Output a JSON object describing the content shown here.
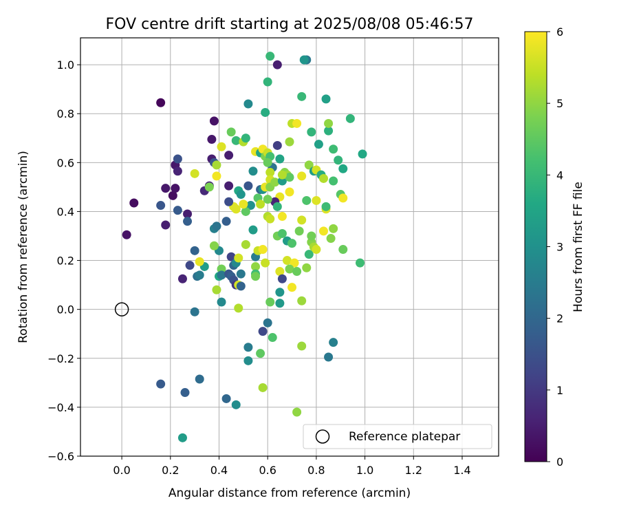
{
  "chart_data": {
    "type": "scatter",
    "title": "FOV centre drift starting at 2025/08/08 05:46:57",
    "xlabel": "Angular distance from reference (arcmin)",
    "ylabel": "Rotation from reference (arcmin)",
    "xlim": [
      -0.17,
      1.55
    ],
    "ylim": [
      -0.6,
      1.11
    ],
    "xticks": [
      "0.0",
      "0.2",
      "0.4",
      "0.6",
      "0.8",
      "1.0",
      "1.2",
      "1.4"
    ],
    "yticks": [
      "1.0",
      "0.8",
      "0.6",
      "0.4",
      "0.2",
      "0.0",
      "−0.2",
      "−0.4",
      "−0.6"
    ],
    "grid": true,
    "colormap": "viridis",
    "colorbar": {
      "label": "Hours from first FF file",
      "range": [
        0,
        6
      ],
      "ticks": [
        "0",
        "1",
        "2",
        "3",
        "4",
        "5",
        "6"
      ]
    },
    "legend": {
      "position": "lower right",
      "entries": [
        {
          "label": "Reference platepar",
          "marker": "open-circle",
          "x": 0.0,
          "y": 0.0
        }
      ]
    },
    "points": [
      {
        "x": 0.16,
        "y": 0.845,
        "c": 0.1
      },
      {
        "x": 0.05,
        "y": 0.435,
        "c": 0.2
      },
      {
        "x": 0.02,
        "y": 0.305,
        "c": 0.3
      },
      {
        "x": 0.18,
        "y": 0.495,
        "c": 0.4
      },
      {
        "x": 0.18,
        "y": 0.345,
        "c": 0.5
      },
      {
        "x": 0.21,
        "y": 0.465,
        "c": 0.2
      },
      {
        "x": 0.22,
        "y": 0.495,
        "c": 0.3
      },
      {
        "x": 0.22,
        "y": 0.59,
        "c": 0.4
      },
      {
        "x": 0.23,
        "y": 0.565,
        "c": 0.6
      },
      {
        "x": 0.23,
        "y": 0.615,
        "c": 1.5
      },
      {
        "x": 0.16,
        "y": 0.425,
        "c": 1.6
      },
      {
        "x": 0.23,
        "y": 0.405,
        "c": 1.7
      },
      {
        "x": 0.27,
        "y": 0.39,
        "c": 0.5
      },
      {
        "x": 0.27,
        "y": 0.36,
        "c": 1.8
      },
      {
        "x": 0.25,
        "y": 0.125,
        "c": 0.6
      },
      {
        "x": 0.28,
        "y": 0.18,
        "c": 1.3
      },
      {
        "x": 0.3,
        "y": 0.24,
        "c": 1.9
      },
      {
        "x": 0.31,
        "y": 0.135,
        "c": 2.2
      },
      {
        "x": 0.32,
        "y": 0.14,
        "c": 2.5
      },
      {
        "x": 0.34,
        "y": 0.175,
        "c": 3.3
      },
      {
        "x": 0.32,
        "y": 0.195,
        "c": 5.8
      },
      {
        "x": 0.3,
        "y": 0.555,
        "c": 5.6
      },
      {
        "x": 0.34,
        "y": 0.485,
        "c": 0.7
      },
      {
        "x": 0.36,
        "y": 0.505,
        "c": 0.6
      },
      {
        "x": 0.37,
        "y": 0.695,
        "c": 0.4
      },
      {
        "x": 0.38,
        "y": 0.77,
        "c": 0.3
      },
      {
        "x": 0.37,
        "y": 0.615,
        "c": 0.5
      },
      {
        "x": 0.38,
        "y": 0.6,
        "c": 1.6
      },
      {
        "x": 0.39,
        "y": 0.59,
        "c": 5.2
      },
      {
        "x": 0.36,
        "y": 0.5,
        "c": 4.8
      },
      {
        "x": 0.39,
        "y": 0.545,
        "c": 5.9
      },
      {
        "x": 0.41,
        "y": 0.665,
        "c": 5.7
      },
      {
        "x": 0.44,
        "y": 0.63,
        "c": 0.5
      },
      {
        "x": 0.44,
        "y": 0.505,
        "c": 0.5
      },
      {
        "x": 0.45,
        "y": 0.725,
        "c": 4.6
      },
      {
        "x": 0.47,
        "y": 0.69,
        "c": 4.0
      },
      {
        "x": 0.5,
        "y": 0.685,
        "c": 5.3
      },
      {
        "x": 0.51,
        "y": 0.7,
        "c": 3.9
      },
      {
        "x": 0.46,
        "y": 0.42,
        "c": 5.7
      },
      {
        "x": 0.48,
        "y": 0.485,
        "c": 3.6
      },
      {
        "x": 0.49,
        "y": 0.47,
        "c": 3.1
      },
      {
        "x": 0.52,
        "y": 0.505,
        "c": 1.6
      },
      {
        "x": 0.53,
        "y": 0.425,
        "c": 3.0
      },
      {
        "x": 0.51,
        "y": 0.4,
        "c": 4.5
      },
      {
        "x": 0.47,
        "y": 0.41,
        "c": 5.7
      },
      {
        "x": 0.5,
        "y": 0.43,
        "c": 5.8
      },
      {
        "x": 0.44,
        "y": 0.44,
        "c": 1.4
      },
      {
        "x": 0.38,
        "y": 0.33,
        "c": 2.6
      },
      {
        "x": 0.39,
        "y": 0.34,
        "c": 2.3
      },
      {
        "x": 0.4,
        "y": 0.24,
        "c": 2.8
      },
      {
        "x": 0.38,
        "y": 0.26,
        "c": 4.9
      },
      {
        "x": 0.43,
        "y": 0.36,
        "c": 1.8
      },
      {
        "x": 0.45,
        "y": 0.215,
        "c": 1.2
      },
      {
        "x": 0.46,
        "y": 0.18,
        "c": 2.0
      },
      {
        "x": 0.47,
        "y": 0.19,
        "c": 2.8
      },
      {
        "x": 0.48,
        "y": 0.21,
        "c": 5.6
      },
      {
        "x": 0.41,
        "y": 0.165,
        "c": 4.7
      },
      {
        "x": 0.4,
        "y": 0.135,
        "c": 3.6
      },
      {
        "x": 0.41,
        "y": 0.14,
        "c": 2.4
      },
      {
        "x": 0.44,
        "y": 0.145,
        "c": 1.6
      },
      {
        "x": 0.45,
        "y": 0.135,
        "c": 1.8
      },
      {
        "x": 0.46,
        "y": 0.12,
        "c": 1.5
      },
      {
        "x": 0.47,
        "y": 0.1,
        "c": 1.0
      },
      {
        "x": 0.48,
        "y": 0.1,
        "c": 5.6
      },
      {
        "x": 0.49,
        "y": 0.095,
        "c": 1.9
      },
      {
        "x": 0.49,
        "y": 0.145,
        "c": 2.4
      },
      {
        "x": 0.39,
        "y": 0.08,
        "c": 5.2
      },
      {
        "x": 0.41,
        "y": 0.03,
        "c": 2.8
      },
      {
        "x": 0.48,
        "y": 0.005,
        "c": 5.3
      },
      {
        "x": 0.3,
        "y": -0.01,
        "c": 2.3
      },
      {
        "x": 0.51,
        "y": 0.265,
        "c": 5.2
      },
      {
        "x": 0.54,
        "y": 0.325,
        "c": 3.3
      },
      {
        "x": 0.55,
        "y": 0.215,
        "c": 2.5
      },
      {
        "x": 0.55,
        "y": 0.175,
        "c": 5.0
      },
      {
        "x": 0.55,
        "y": 0.145,
        "c": 4.1
      },
      {
        "x": 0.55,
        "y": 0.135,
        "c": 4.7
      },
      {
        "x": 0.56,
        "y": 0.24,
        "c": 5.5
      },
      {
        "x": 0.58,
        "y": 0.245,
        "c": 5.9
      },
      {
        "x": 0.59,
        "y": 0.19,
        "c": 5.5
      },
      {
        "x": 0.56,
        "y": 0.455,
        "c": 4.4
      },
      {
        "x": 0.57,
        "y": 0.43,
        "c": 5.4
      },
      {
        "x": 0.57,
        "y": 0.49,
        "c": 1.9
      },
      {
        "x": 0.58,
        "y": 0.49,
        "c": 3.0
      },
      {
        "x": 0.54,
        "y": 0.565,
        "c": 2.9
      },
      {
        "x": 0.55,
        "y": 0.645,
        "c": 5.8
      },
      {
        "x": 0.57,
        "y": 0.64,
        "c": 3.5
      },
      {
        "x": 0.58,
        "y": 0.655,
        "c": 5.9
      },
      {
        "x": 0.59,
        "y": 0.625,
        "c": 4.8
      },
      {
        "x": 0.6,
        "y": 0.64,
        "c": 5.5
      },
      {
        "x": 0.61,
        "y": 0.625,
        "c": 4.2
      },
      {
        "x": 0.62,
        "y": 0.58,
        "c": 2.3
      },
      {
        "x": 0.6,
        "y": 0.6,
        "c": 4.6
      },
      {
        "x": 0.61,
        "y": 0.56,
        "c": 5.4
      },
      {
        "x": 0.59,
        "y": 0.5,
        "c": 5.8
      },
      {
        "x": 0.61,
        "y": 0.53,
        "c": 5.6
      },
      {
        "x": 0.61,
        "y": 0.5,
        "c": 4.9
      },
      {
        "x": 0.63,
        "y": 0.52,
        "c": 5.0
      },
      {
        "x": 0.64,
        "y": 0.67,
        "c": 1.1
      },
      {
        "x": 0.65,
        "y": 0.615,
        "c": 3.5
      },
      {
        "x": 0.66,
        "y": 0.525,
        "c": 3.3
      },
      {
        "x": 0.65,
        "y": 0.46,
        "c": 5.8
      },
      {
        "x": 0.63,
        "y": 0.44,
        "c": 0.6
      },
      {
        "x": 0.64,
        "y": 0.42,
        "c": 3.9
      },
      {
        "x": 0.6,
        "y": 0.45,
        "c": 4.7
      },
      {
        "x": 0.6,
        "y": 0.38,
        "c": 5.3
      },
      {
        "x": 0.61,
        "y": 0.37,
        "c": 5.5
      },
      {
        "x": 0.66,
        "y": 0.38,
        "c": 5.9
      },
      {
        "x": 0.64,
        "y": 0.3,
        "c": 4.7
      },
      {
        "x": 0.66,
        "y": 0.31,
        "c": 4.3
      },
      {
        "x": 0.68,
        "y": 0.28,
        "c": 3.3
      },
      {
        "x": 0.7,
        "y": 0.27,
        "c": 4.3
      },
      {
        "x": 0.68,
        "y": 0.2,
        "c": 5.6
      },
      {
        "x": 0.71,
        "y": 0.19,
        "c": 5.9
      },
      {
        "x": 0.69,
        "y": 0.165,
        "c": 4.8
      },
      {
        "x": 0.72,
        "y": 0.155,
        "c": 4.6
      },
      {
        "x": 0.65,
        "y": 0.155,
        "c": 5.7
      },
      {
        "x": 0.66,
        "y": 0.125,
        "c": 1.3
      },
      {
        "x": 0.65,
        "y": 0.07,
        "c": 3.1
      },
      {
        "x": 0.61,
        "y": 0.03,
        "c": 4.6
      },
      {
        "x": 0.65,
        "y": 0.025,
        "c": 3.2
      },
      {
        "x": 0.7,
        "y": 0.09,
        "c": 5.9
      },
      {
        "x": 0.74,
        "y": 0.035,
        "c": 5.1
      },
      {
        "x": 0.74,
        "y": 0.365,
        "c": 5.6
      },
      {
        "x": 0.73,
        "y": 0.32,
        "c": 4.7
      },
      {
        "x": 0.76,
        "y": 0.445,
        "c": 4.3
      },
      {
        "x": 0.76,
        "y": 0.17,
        "c": 5.0
      },
      {
        "x": 0.77,
        "y": 0.225,
        "c": 4.0
      },
      {
        "x": 0.78,
        "y": 0.275,
        "c": 4.9
      },
      {
        "x": 0.78,
        "y": 0.3,
        "c": 4.7
      },
      {
        "x": 0.79,
        "y": 0.255,
        "c": 5.2
      },
      {
        "x": 0.8,
        "y": 0.245,
        "c": 5.6
      },
      {
        "x": 0.84,
        "y": 0.41,
        "c": 5.7
      },
      {
        "x": 0.84,
        "y": 0.42,
        "c": 4.1
      },
      {
        "x": 0.86,
        "y": 0.29,
        "c": 4.9
      },
      {
        "x": 0.9,
        "y": 0.47,
        "c": 4.4
      },
      {
        "x": 0.91,
        "y": 0.455,
        "c": 5.9
      },
      {
        "x": 0.91,
        "y": 0.245,
        "c": 4.6
      },
      {
        "x": 0.98,
        "y": 0.19,
        "c": 4.1
      },
      {
        "x": 0.67,
        "y": 0.56,
        "c": 4.9
      },
      {
        "x": 0.68,
        "y": 0.55,
        "c": 5.1
      },
      {
        "x": 0.69,
        "y": 0.54,
        "c": 4.5
      },
      {
        "x": 0.66,
        "y": 0.55,
        "c": 5.3
      },
      {
        "x": 0.7,
        "y": 0.76,
        "c": 5.4
      },
      {
        "x": 0.72,
        "y": 0.76,
        "c": 5.9
      },
      {
        "x": 0.69,
        "y": 0.685,
        "c": 5.1
      },
      {
        "x": 0.74,
        "y": 0.87,
        "c": 4.0
      },
      {
        "x": 0.77,
        "y": 0.59,
        "c": 5.0
      },
      {
        "x": 0.78,
        "y": 0.725,
        "c": 3.9
      },
      {
        "x": 0.79,
        "y": 0.565,
        "c": 3.3
      },
      {
        "x": 0.8,
        "y": 0.57,
        "c": 5.6
      },
      {
        "x": 0.81,
        "y": 0.675,
        "c": 3.4
      },
      {
        "x": 0.82,
        "y": 0.55,
        "c": 3.7
      },
      {
        "x": 0.83,
        "y": 0.535,
        "c": 5.3
      },
      {
        "x": 0.84,
        "y": 0.86,
        "c": 3.4
      },
      {
        "x": 0.85,
        "y": 0.73,
        "c": 3.8
      },
      {
        "x": 0.85,
        "y": 0.76,
        "c": 5.0
      },
      {
        "x": 0.87,
        "y": 0.655,
        "c": 4.1
      },
      {
        "x": 0.87,
        "y": 0.525,
        "c": 4.2
      },
      {
        "x": 0.89,
        "y": 0.61,
        "c": 3.9
      },
      {
        "x": 0.91,
        "y": 0.575,
        "c": 3.6
      },
      {
        "x": 0.94,
        "y": 0.78,
        "c": 3.9
      },
      {
        "x": 0.99,
        "y": 0.635,
        "c": 3.6
      },
      {
        "x": 0.61,
        "y": 1.035,
        "c": 4.0
      },
      {
        "x": 0.64,
        "y": 1.0,
        "c": 0.5
      },
      {
        "x": 0.76,
        "y": 1.02,
        "c": 2.4
      },
      {
        "x": 0.75,
        "y": 1.02,
        "c": 3.1
      },
      {
        "x": 0.6,
        "y": 0.93,
        "c": 3.9
      },
      {
        "x": 0.59,
        "y": 0.805,
        "c": 3.7
      },
      {
        "x": 0.52,
        "y": 0.84,
        "c": 2.8
      },
      {
        "x": 0.6,
        "y": -0.055,
        "c": 2.3
      },
      {
        "x": 0.62,
        "y": -0.115,
        "c": 4.3
      },
      {
        "x": 0.58,
        "y": -0.09,
        "c": 1.3
      },
      {
        "x": 0.52,
        "y": -0.155,
        "c": 2.5
      },
      {
        "x": 0.52,
        "y": -0.21,
        "c": 2.9
      },
      {
        "x": 0.57,
        "y": -0.18,
        "c": 4.5
      },
      {
        "x": 0.58,
        "y": -0.32,
        "c": 5.2
      },
      {
        "x": 0.74,
        "y": -0.15,
        "c": 5.1
      },
      {
        "x": 0.72,
        "y": -0.42,
        "c": 5.0
      },
      {
        "x": 0.85,
        "y": -0.195,
        "c": 2.4
      },
      {
        "x": 0.87,
        "y": -0.135,
        "c": 2.6
      },
      {
        "x": 0.16,
        "y": -0.305,
        "c": 1.7
      },
      {
        "x": 0.26,
        "y": -0.34,
        "c": 1.8
      },
      {
        "x": 0.32,
        "y": -0.285,
        "c": 2.1
      },
      {
        "x": 0.43,
        "y": -0.365,
        "c": 2.0
      },
      {
        "x": 0.47,
        "y": -0.39,
        "c": 2.9
      },
      {
        "x": 0.25,
        "y": -0.525,
        "c": 3.3
      },
      {
        "x": 0.69,
        "y": 0.48,
        "c": 5.9
      },
      {
        "x": 0.74,
        "y": 0.545,
        "c": 5.8
      },
      {
        "x": 0.8,
        "y": 0.445,
        "c": 5.7
      },
      {
        "x": 0.83,
        "y": 0.32,
        "c": 5.9
      },
      {
        "x": 0.87,
        "y": 0.33,
        "c": 5.0
      }
    ]
  }
}
